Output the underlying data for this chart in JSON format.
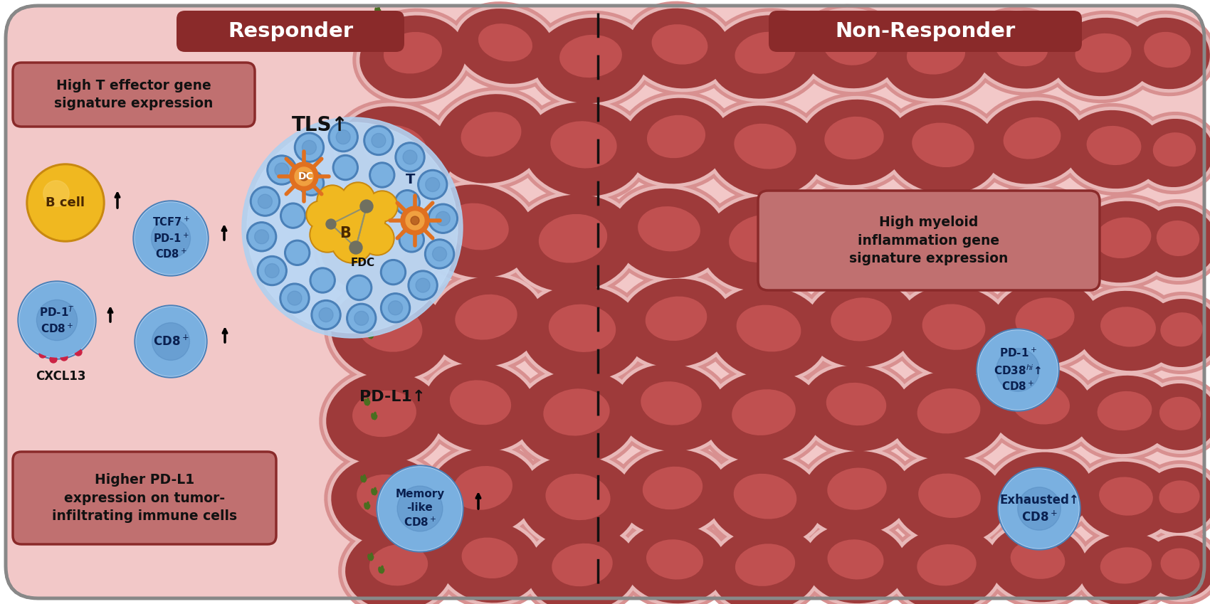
{
  "bg_color": "#f2c8c8",
  "outer_border_color": "#888888",
  "title_responder": "Responder",
  "title_non_responder": "Non-Responder",
  "label_high_t_effector": "High T effector gene\nsignature expression",
  "label_high_myeloid": "High myeloid\ninflammation gene\nsignature expression",
  "label_higher_pdl1": "Higher PD-L1\nexpression on tumor-\ninfiltrating immune cells",
  "tumor_outer": "#c07878",
  "tumor_body": "#9e3a3a",
  "tumor_nucleus": "#c05050",
  "tumor_membrane": "#d89090",
  "lymph_blue": "#7ab0e0",
  "lymph_blue_dark": "#4a80b8",
  "lymph_blue_light": "#b0d0f0",
  "b_cell_yellow": "#f0b820",
  "b_cell_yellow_dark": "#c88810",
  "dc_orange": "#e07020",
  "dc_orange_light": "#f0a040",
  "pink_bg": "#f2c8c8",
  "box_red_dark": "#8a2a2a",
  "box_red_fill": "#c07070",
  "text_dark": "#111111",
  "arrow_color": "#111111",
  "dashed_line_color": "#111111",
  "cxcl13_dot_color": "#cc2244",
  "green_spike_color": "#4a6e20",
  "white": "#ffffff",
  "fdc_gray": "#707060"
}
